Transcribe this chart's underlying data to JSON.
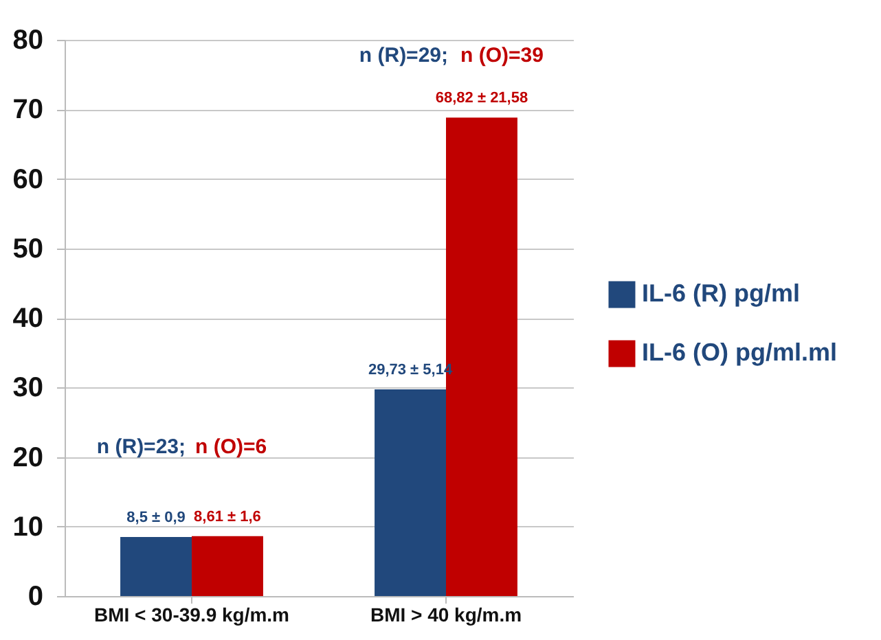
{
  "chart_data": {
    "type": "bar",
    "categories": [
      "BMI < 30-39.9 kg/m.m",
      "BMI > 40 kg/m.m"
    ],
    "series": [
      {
        "name": "IL-6 (R) pg/ml",
        "color": "#21487c",
        "values": [
          8.5,
          29.73
        ],
        "value_labels": [
          "8,5 ± 0,9",
          "29,73 ± 5,14"
        ]
      },
      {
        "name": "IL-6 (O) pg/ml.ml",
        "color": "#c00000",
        "values": [
          8.61,
          68.82
        ],
        "value_labels": [
          "8,61 ± 1,6",
          "68,82 ± 21,58"
        ]
      }
    ],
    "annotations": [
      "n (R)=23;",
      "n (O)=6",
      "n (R)=29;",
      "n (O)=39"
    ],
    "ylim": [
      0,
      80
    ],
    "yticks": [
      0,
      10,
      20,
      30,
      40,
      50,
      60,
      70,
      80
    ],
    "grid": "y",
    "legend": "right"
  }
}
